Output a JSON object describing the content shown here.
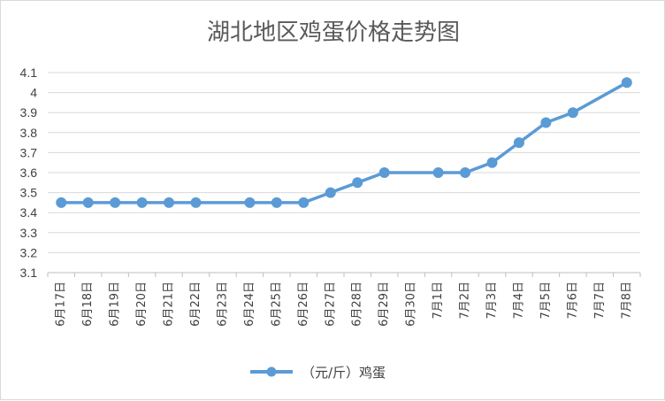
{
  "chart_data": {
    "type": "line",
    "title": "湖北地区鸡蛋价格走势图",
    "categories": [
      "6月17日",
      "6月18日",
      "6月19日",
      "6月20日",
      "6月21日",
      "6月22日",
      "6月23日",
      "6月24日",
      "6月25日",
      "6月26日",
      "6月27日",
      "6月28日",
      "6月29日",
      "6月30日",
      "7月1日",
      "7月2日",
      "7月3日",
      "7月4日",
      "7月5日",
      "7月6日",
      "7月7日",
      "7月8日"
    ],
    "series": [
      {
        "name": "（元/斤）鸡蛋",
        "color": "#5b9bd5",
        "values": [
          3.45,
          3.45,
          3.45,
          3.45,
          3.45,
          3.45,
          null,
          3.45,
          3.45,
          3.45,
          3.5,
          3.55,
          3.6,
          null,
          3.6,
          3.6,
          3.65,
          3.75,
          3.85,
          3.9,
          null,
          4.05
        ]
      }
    ],
    "ylim": [
      3.1,
      4.1
    ],
    "yticks": [
      "3.1",
      "3.2",
      "3.3",
      "3.4",
      "3.5",
      "3.6",
      "3.7",
      "3.8",
      "3.9",
      "4",
      "4.1"
    ],
    "grid": true,
    "legend_position": "bottom"
  }
}
